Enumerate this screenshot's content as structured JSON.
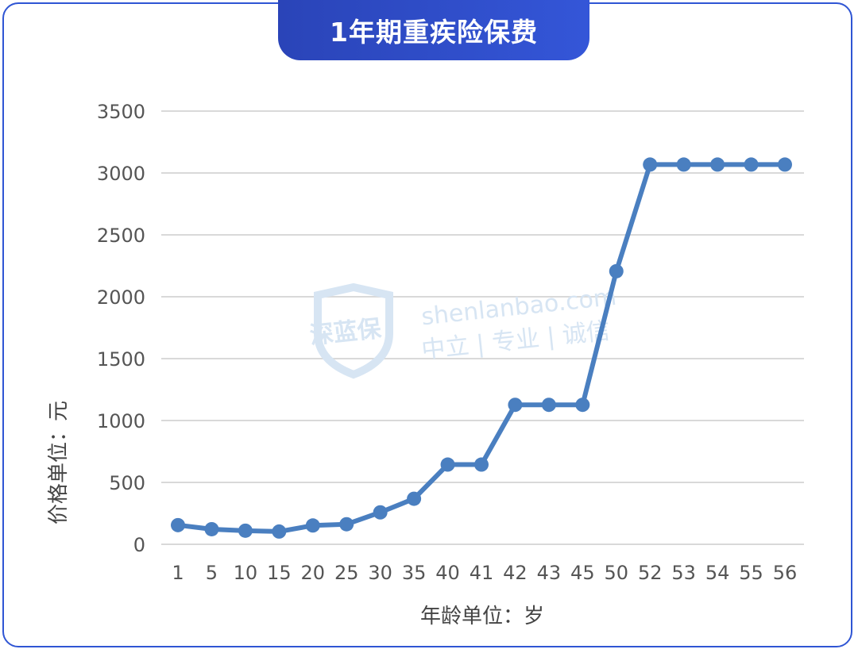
{
  "title": "1年期重疾险保费",
  "watermark": {
    "logo_text": "深蓝保",
    "site": "shenlanbao.com",
    "slogan": "中立 | 专业 | 诚信"
  },
  "colors": {
    "line": "#4a7fc0",
    "grid": "#d9d9d9",
    "border": "#2f55d4",
    "title_bg": "#2f4fcc"
  },
  "chart_data": {
    "type": "line",
    "title": "1年期重疾险保费",
    "xlabel": "年龄单位：岁",
    "ylabel": "价格单位：元",
    "ylim": [
      0,
      3500
    ],
    "yticks": [
      0,
      500,
      1000,
      1500,
      2000,
      2500,
      3000,
      3500
    ],
    "grid": true,
    "categories": [
      "1",
      "5",
      "10",
      "15",
      "20",
      "25",
      "30",
      "35",
      "40",
      "41",
      "42",
      "43",
      "45",
      "50",
      "52",
      "53",
      "54",
      "55",
      "56"
    ],
    "series": [
      {
        "values": [
          155,
          122,
          110,
          103,
          152,
          162,
          258,
          368,
          644,
          644,
          1127,
          1127,
          1127,
          2206,
          3068,
          3068,
          3068,
          3068,
          3068
        ]
      }
    ]
  }
}
